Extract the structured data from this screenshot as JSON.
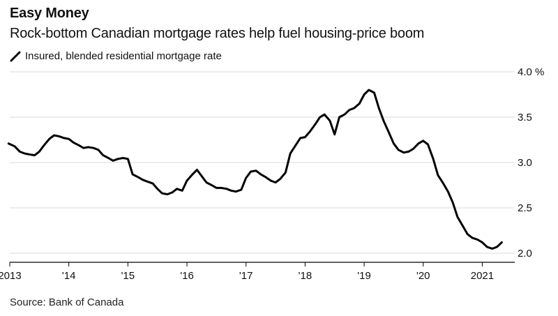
{
  "header": {
    "title": "Easy Money",
    "subtitle": "Rock-bottom Canadian mortgage rates help fuel housing-price boom"
  },
  "footer": {
    "source": "Source: Bank of Canada"
  },
  "colors": {
    "line": "#000000",
    "grid": "#d9d9d9",
    "axis": "#000000"
  },
  "chart_data": {
    "type": "line",
    "title": "Easy Money",
    "subtitle": "Rock-bottom Canadian mortgage rates help fuel housing-price boom",
    "ylabel": "",
    "xlabel": "",
    "ylim": [
      1.9,
      4.0
    ],
    "xlim": [
      2013.0,
      2021.55
    ],
    "grid": true,
    "y_axis_side": "right",
    "legend_placement": "top-left",
    "y_ticks": [
      {
        "value": 4.0,
        "label": "4.0 %"
      },
      {
        "value": 3.5,
        "label": "3.5"
      },
      {
        "value": 3.0,
        "label": "3.0"
      },
      {
        "value": 2.5,
        "label": "2.5"
      },
      {
        "value": 2.0,
        "label": "2.0"
      }
    ],
    "x_ticks": [
      {
        "value": 2013,
        "label": "2013"
      },
      {
        "value": 2014,
        "label": "'14"
      },
      {
        "value": 2015,
        "label": "'15"
      },
      {
        "value": 2016,
        "label": "'16"
      },
      {
        "value": 2017,
        "label": "'17"
      },
      {
        "value": 2018,
        "label": "'18"
      },
      {
        "value": 2019,
        "label": "'19"
      },
      {
        "value": 2020,
        "label": "'20"
      },
      {
        "value": 2021,
        "label": "2021"
      }
    ],
    "series": [
      {
        "name": "Insured, blended residential mortgage rate",
        "color": "#000000",
        "x": [
          2012.98,
          2013.08,
          2013.17,
          2013.25,
          2013.33,
          2013.42,
          2013.5,
          2013.58,
          2013.67,
          2013.75,
          2013.83,
          2013.92,
          2014.0,
          2014.08,
          2014.17,
          2014.25,
          2014.33,
          2014.42,
          2014.5,
          2014.58,
          2014.67,
          2014.75,
          2014.83,
          2014.92,
          2015.0,
          2015.08,
          2015.17,
          2015.25,
          2015.33,
          2015.42,
          2015.5,
          2015.58,
          2015.67,
          2015.75,
          2015.83,
          2015.92,
          2016.0,
          2016.08,
          2016.17,
          2016.25,
          2016.33,
          2016.42,
          2016.5,
          2016.58,
          2016.67,
          2016.75,
          2016.83,
          2016.92,
          2017.0,
          2017.08,
          2017.17,
          2017.25,
          2017.33,
          2017.42,
          2017.5,
          2017.58,
          2017.67,
          2017.75,
          2017.83,
          2017.92,
          2018.0,
          2018.08,
          2018.17,
          2018.25,
          2018.33,
          2018.42,
          2018.5,
          2018.58,
          2018.67,
          2018.75,
          2018.83,
          2018.92,
          2019.0,
          2019.08,
          2019.17,
          2019.25,
          2019.33,
          2019.42,
          2019.5,
          2019.58,
          2019.67,
          2019.75,
          2019.83,
          2019.92,
          2020.0,
          2020.08,
          2020.17,
          2020.25,
          2020.33,
          2020.42,
          2020.5,
          2020.58,
          2020.67,
          2020.75,
          2020.83,
          2020.92,
          2021.0,
          2021.08,
          2021.17,
          2021.25,
          2021.33
        ],
        "values": [
          3.21,
          3.18,
          3.12,
          3.1,
          3.09,
          3.08,
          3.12,
          3.19,
          3.26,
          3.3,
          3.29,
          3.27,
          3.26,
          3.22,
          3.19,
          3.16,
          3.17,
          3.16,
          3.14,
          3.08,
          3.05,
          3.02,
          3.04,
          3.05,
          3.04,
          2.87,
          2.84,
          2.81,
          2.79,
          2.77,
          2.71,
          2.66,
          2.65,
          2.67,
          2.71,
          2.69,
          2.8,
          2.86,
          2.92,
          2.85,
          2.78,
          2.75,
          2.72,
          2.72,
          2.71,
          2.69,
          2.68,
          2.7,
          2.83,
          2.9,
          2.91,
          2.87,
          2.84,
          2.8,
          2.78,
          2.82,
          2.89,
          3.1,
          3.18,
          3.27,
          3.28,
          3.34,
          3.42,
          3.5,
          3.53,
          3.46,
          3.31,
          3.5,
          3.53,
          3.58,
          3.6,
          3.65,
          3.75,
          3.8,
          3.77,
          3.6,
          3.46,
          3.33,
          3.21,
          3.14,
          3.11,
          3.12,
          3.15,
          3.21,
          3.24,
          3.2,
          3.04,
          2.86,
          2.78,
          2.68,
          2.56,
          2.4,
          2.3,
          2.21,
          2.17,
          2.15,
          2.12,
          2.07,
          2.05,
          2.07,
          2.12
        ]
      }
    ]
  }
}
